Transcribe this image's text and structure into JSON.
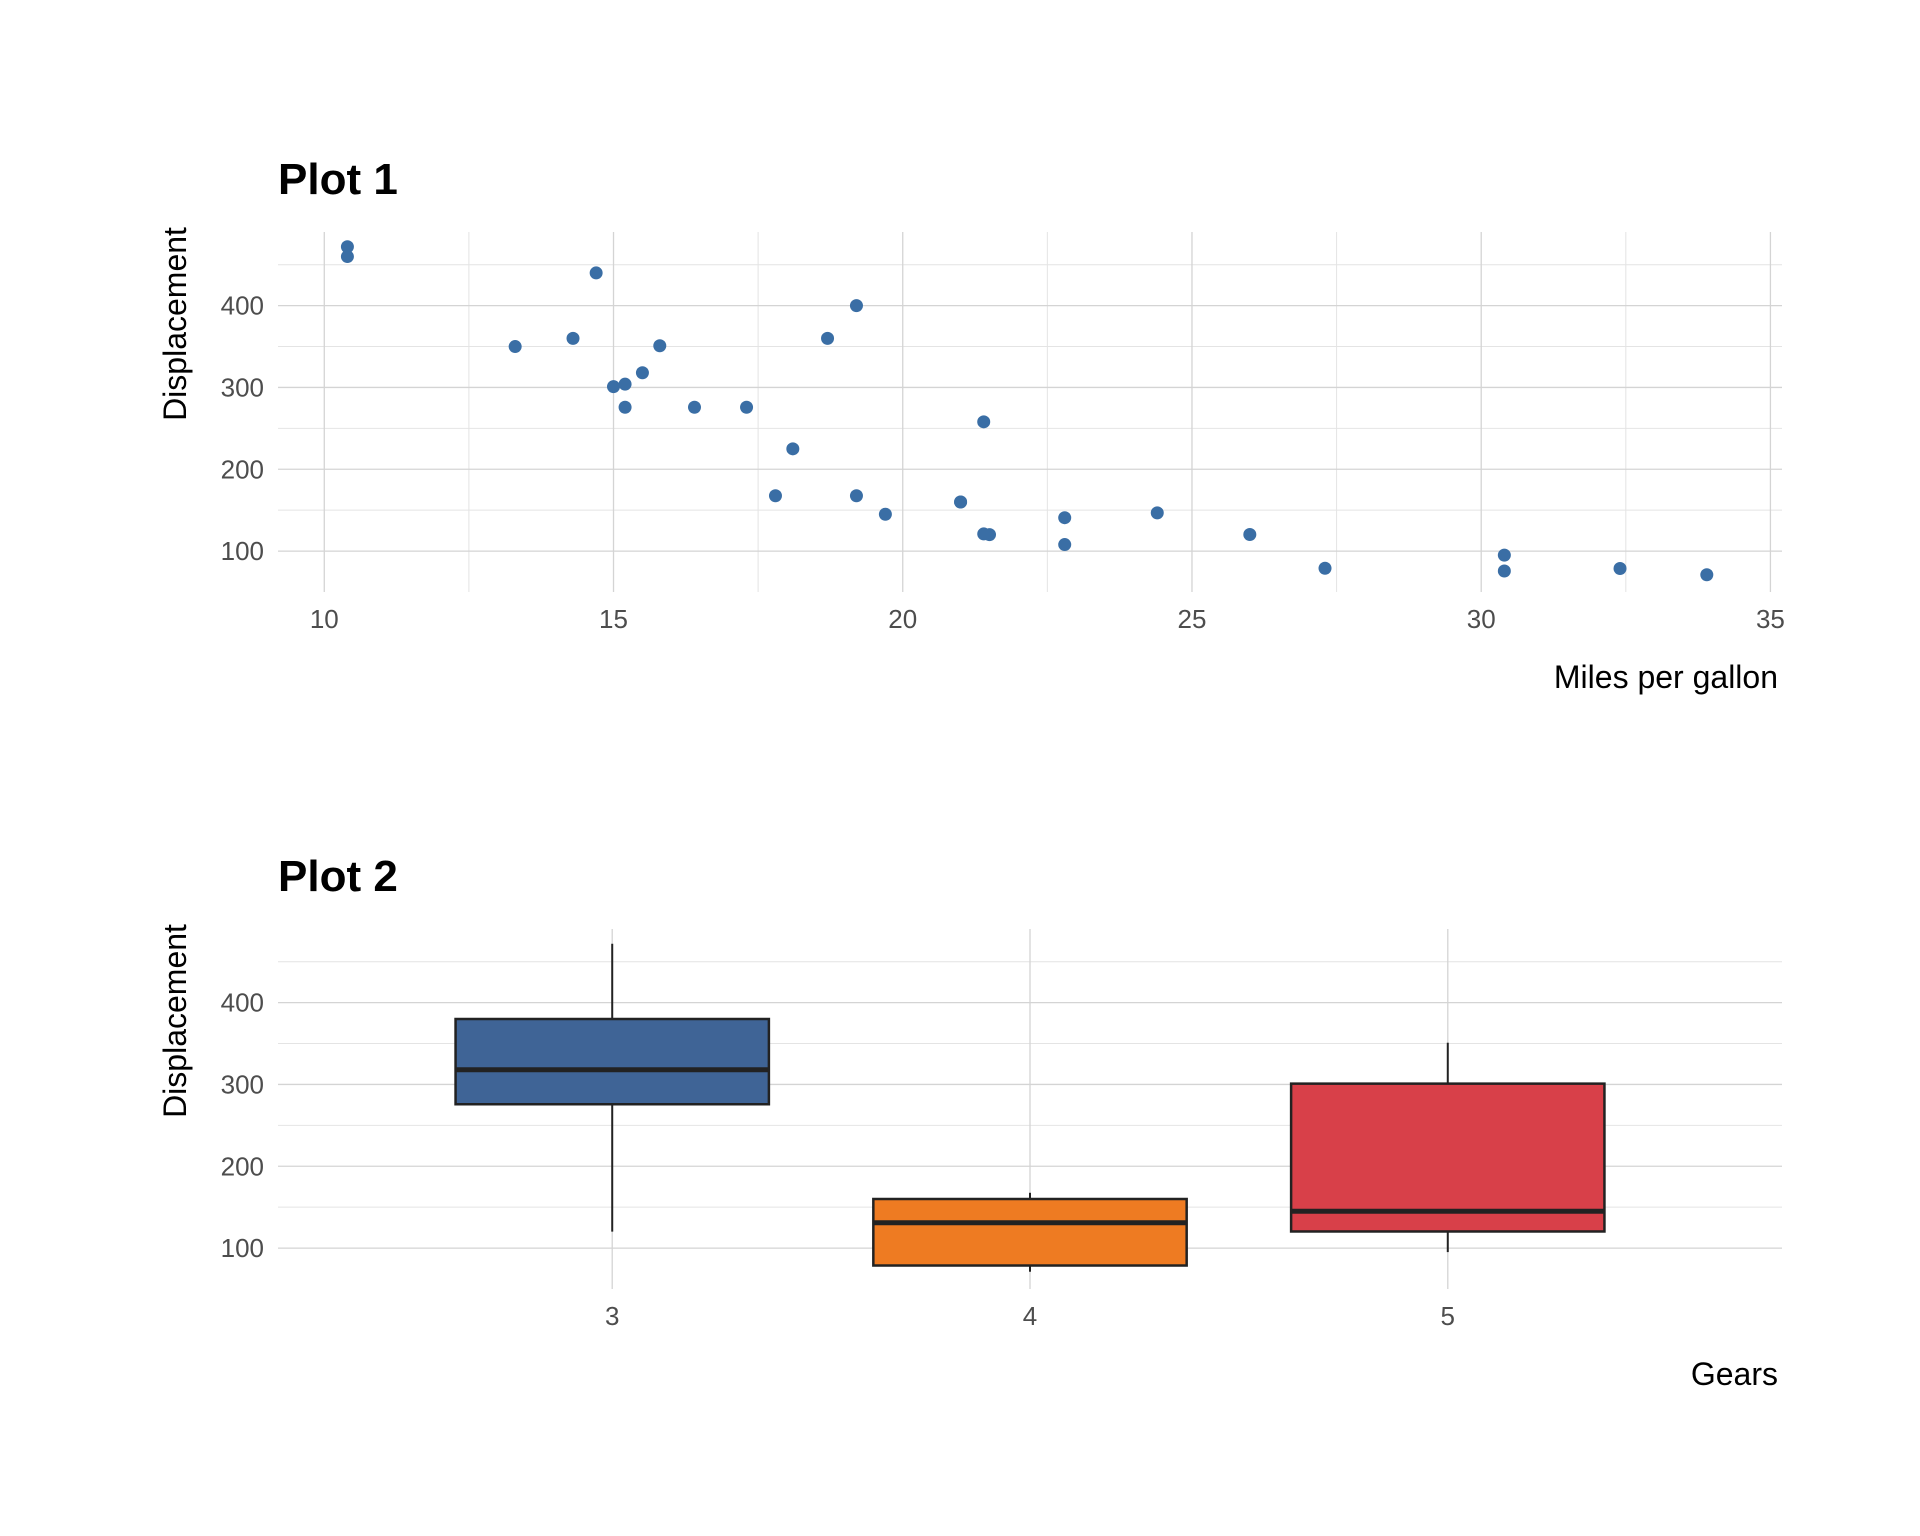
{
  "chart_data": [
    {
      "type": "scatter",
      "title": "Plot 1",
      "xlabel": "Miles per gallon",
      "ylabel": "Displacement",
      "xlim": [
        9.2,
        35.2
      ],
      "ylim": [
        50,
        490
      ],
      "xticks": [
        10,
        15,
        20,
        25,
        30,
        35
      ],
      "yticks": [
        100,
        200,
        300,
        400
      ],
      "grid": true,
      "color": "#3a6ea5",
      "points": [
        {
          "x": 21.0,
          "y": 160
        },
        {
          "x": 21.0,
          "y": 160
        },
        {
          "x": 22.8,
          "y": 108
        },
        {
          "x": 21.4,
          "y": 258
        },
        {
          "x": 18.7,
          "y": 360
        },
        {
          "x": 18.1,
          "y": 225
        },
        {
          "x": 14.3,
          "y": 360
        },
        {
          "x": 24.4,
          "y": 146.7
        },
        {
          "x": 22.8,
          "y": 140.8
        },
        {
          "x": 19.2,
          "y": 167.6
        },
        {
          "x": 17.8,
          "y": 167.6
        },
        {
          "x": 16.4,
          "y": 275.8
        },
        {
          "x": 17.3,
          "y": 275.8
        },
        {
          "x": 15.2,
          "y": 275.8
        },
        {
          "x": 10.4,
          "y": 472
        },
        {
          "x": 10.4,
          "y": 460
        },
        {
          "x": 14.7,
          "y": 440
        },
        {
          "x": 32.4,
          "y": 78.7
        },
        {
          "x": 30.4,
          "y": 75.7
        },
        {
          "x": 33.9,
          "y": 71.1
        },
        {
          "x": 21.5,
          "y": 120.1
        },
        {
          "x": 15.5,
          "y": 318
        },
        {
          "x": 15.2,
          "y": 304
        },
        {
          "x": 13.3,
          "y": 350
        },
        {
          "x": 19.2,
          "y": 400
        },
        {
          "x": 27.3,
          "y": 79
        },
        {
          "x": 26.0,
          "y": 120.3
        },
        {
          "x": 30.4,
          "y": 95.1
        },
        {
          "x": 15.8,
          "y": 351
        },
        {
          "x": 19.7,
          "y": 145
        },
        {
          "x": 15.0,
          "y": 301
        },
        {
          "x": 21.4,
          "y": 121
        }
      ]
    },
    {
      "type": "boxplot",
      "title": "Plot 2",
      "xlabel": "Gears",
      "ylabel": "Displacement",
      "ylim": [
        50,
        490
      ],
      "yticks": [
        100,
        200,
        300,
        400
      ],
      "grid": true,
      "categories": [
        "3",
        "4",
        "5"
      ],
      "boxes": [
        {
          "category": "3",
          "whisker_low": 120.1,
          "q1": 275.8,
          "median": 318,
          "q3": 380,
          "whisker_high": 472,
          "color": "#3f6496"
        },
        {
          "category": "4",
          "whisker_low": 71.1,
          "q1": 78.7,
          "median": 130.9,
          "q3": 160,
          "whisker_high": 167.6,
          "color": "#ee7b22"
        },
        {
          "category": "5",
          "whisker_low": 95.1,
          "q1": 120.3,
          "median": 145,
          "q3": 301,
          "whisker_high": 351,
          "color": "#d84049"
        }
      ]
    }
  ]
}
